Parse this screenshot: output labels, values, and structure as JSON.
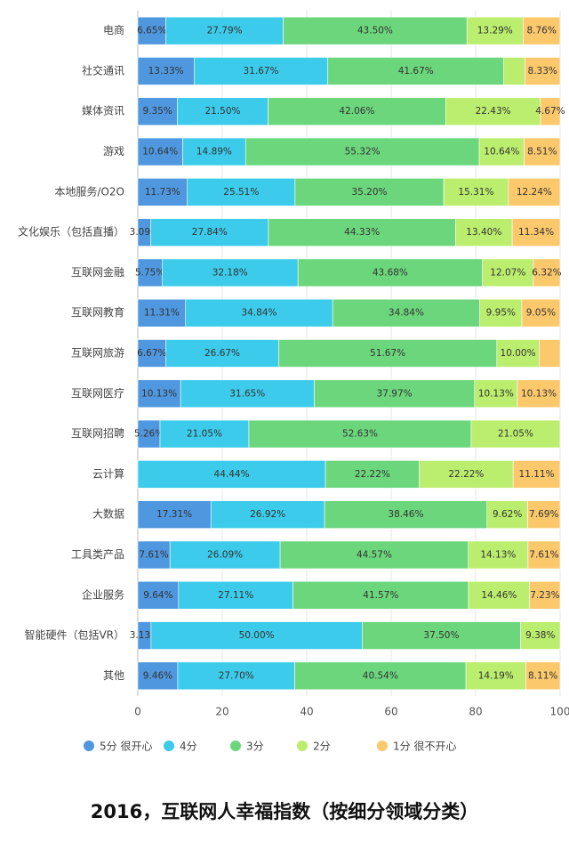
{
  "chart_data": {
    "type": "stacked-barh",
    "title": "2016，互联网人幸福指数（按细分领域分类）",
    "categories": [
      "电商",
      "社交通讯",
      "媒体资讯",
      "游戏",
      "本地服务/O2O",
      "文化娱乐（包括直播）",
      "互联网金融",
      "互联网教育",
      "互联网旅游",
      "互联网医疗",
      "互联网招聘",
      "云计算",
      "大数据",
      "工具类产品",
      "企业服务",
      "智能硬件（包括VR）",
      "其他"
    ],
    "series": [
      {
        "name": "5分 很开心",
        "color": "#4f97de",
        "values": [
          6.65,
          13.33,
          9.35,
          10.64,
          11.73,
          3.09,
          5.75,
          11.31,
          6.67,
          10.13,
          5.26,
          0,
          17.31,
          7.61,
          9.64,
          3.13,
          9.46
        ],
        "value_labels": [
          "6.65%",
          "13.33%",
          "9.35%",
          "10.64%",
          "11.73%",
          "3.09%",
          "5.75%",
          "11.31%",
          "6.67%",
          "10.13%",
          "5.26%",
          null,
          "17.31%",
          "7.61%",
          "9.64%",
          "3.13%",
          "9.46%"
        ]
      },
      {
        "name": "4分",
        "color": "#3ccbea",
        "values": [
          27.79,
          31.67,
          21.5,
          14.89,
          25.51,
          27.84,
          32.18,
          34.84,
          26.67,
          31.65,
          21.05,
          44.44,
          26.92,
          26.09,
          27.11,
          50.0,
          27.7
        ],
        "value_labels": [
          "27.79%",
          "31.67%",
          "21.50%",
          "14.89%",
          "25.51%",
          "27.84%",
          "32.18%",
          "34.84%",
          "26.67%",
          "31.65%",
          "21.05%",
          "44.44%",
          "26.92%",
          "26.09%",
          "27.11%",
          "50.00%",
          "27.70%"
        ]
      },
      {
        "name": "3分",
        "color": "#6cd67c",
        "values": [
          43.5,
          41.67,
          42.06,
          55.32,
          35.2,
          44.33,
          43.68,
          34.84,
          51.67,
          37.97,
          52.63,
          22.22,
          38.46,
          44.57,
          41.57,
          37.5,
          40.54
        ],
        "value_labels": [
          "43.50%",
          "41.67%",
          "42.06%",
          "55.32%",
          "35.20%",
          "44.33%",
          "43.68%",
          "34.84%",
          "51.67%",
          "37.97%",
          "52.63%",
          "22.22%",
          "38.46%",
          "44.57%",
          "41.57%",
          "37.50%",
          "40.54%"
        ]
      },
      {
        "name": "2分",
        "color": "#bbee6e",
        "values": [
          13.29,
          5.0,
          22.43,
          10.64,
          15.31,
          13.4,
          12.07,
          9.95,
          10.0,
          10.13,
          21.05,
          22.22,
          9.62,
          14.13,
          14.46,
          9.38,
          14.19
        ],
        "value_labels": [
          "13.29%",
          null,
          "22.43%",
          "10.64%",
          "15.31%",
          "13.40%",
          "12.07%",
          "9.95%",
          "10.00%",
          "10.13%",
          "21.05%",
          "22.22%",
          "9.62%",
          "14.13%",
          "14.46%",
          "9.38%",
          "14.19%"
        ]
      },
      {
        "name": "1分 很不开心",
        "color": "#fcc86c",
        "values": [
          8.76,
          8.33,
          4.67,
          8.51,
          12.24,
          11.34,
          6.32,
          9.05,
          5.0,
          10.13,
          0,
          11.11,
          7.69,
          7.61,
          7.23,
          0,
          8.11
        ],
        "value_labels": [
          "8.76%",
          "8.33%",
          "4.67%",
          "8.51%",
          "12.24%",
          "11.34%",
          "6.32%",
          "9.05%",
          null,
          "10.13%",
          null,
          "11.11%",
          "7.69%",
          "7.61%",
          "7.23%",
          null,
          "8.11%"
        ]
      }
    ],
    "xlim": [
      0,
      100
    ],
    "xticks": [
      0,
      20,
      40,
      60,
      80,
      100
    ],
    "grid": true
  }
}
